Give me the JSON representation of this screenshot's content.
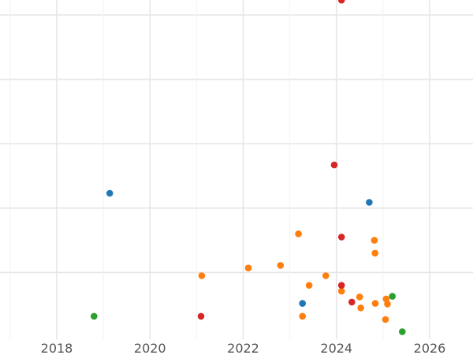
{
  "chart_data": {
    "type": "scatter",
    "title": "",
    "xlabel": "",
    "ylabel": "",
    "grid": true,
    "x_axis": {
      "type": "date",
      "range": [
        "2016-10-01",
        "2026-12-31"
      ],
      "ticks": [
        "2018",
        "2020",
        "2022",
        "2024",
        "2026"
      ],
      "minor_ticks": [
        "2017",
        "2019",
        "2021",
        "2023",
        "2025"
      ]
    },
    "y_axis": {
      "range": [
        0,
        540
      ],
      "gridlines": [
        100,
        200,
        300,
        400,
        500
      ],
      "tick_labels_visible": false
    },
    "series": [
      {
        "color": "#1f77b4",
        "points": [
          {
            "x": "2019-02-20",
            "y": 223
          },
          {
            "x": "2024-09-15",
            "y": 209
          },
          {
            "x": "2023-04-10",
            "y": 52
          }
        ]
      },
      {
        "color": "#ff7f0e",
        "points": [
          {
            "x": "2021-02-10",
            "y": 95
          },
          {
            "x": "2022-02-10",
            "y": 107
          },
          {
            "x": "2022-10-20",
            "y": 111
          },
          {
            "x": "2023-03-10",
            "y": 160
          },
          {
            "x": "2023-06-01",
            "y": 80
          },
          {
            "x": "2023-10-10",
            "y": 95
          },
          {
            "x": "2023-04-10",
            "y": 32
          },
          {
            "x": "2024-02-10",
            "y": 71
          },
          {
            "x": "2024-07-01",
            "y": 62
          },
          {
            "x": "2024-07-10",
            "y": 45
          },
          {
            "x": "2024-10-25",
            "y": 150
          },
          {
            "x": "2024-10-30",
            "y": 130
          },
          {
            "x": "2024-11-01",
            "y": 52
          },
          {
            "x": "2025-01-20",
            "y": 27
          },
          {
            "x": "2025-01-25",
            "y": 59
          },
          {
            "x": "2025-02-05",
            "y": 51
          }
        ]
      },
      {
        "color": "#2ca02c",
        "points": [
          {
            "x": "2018-10-20",
            "y": 32
          },
          {
            "x": "2025-03-15",
            "y": 63
          },
          {
            "x": "2025-06-01",
            "y": 8
          }
        ]
      },
      {
        "color": "#d62728",
        "points": [
          {
            "x": "2024-02-10",
            "y": 523
          },
          {
            "x": "2023-12-15",
            "y": 267
          },
          {
            "x": "2024-02-10",
            "y": 155
          },
          {
            "x": "2024-02-10",
            "y": 80
          },
          {
            "x": "2024-05-01",
            "y": 54
          },
          {
            "x": "2021-02-05",
            "y": 32
          }
        ]
      }
    ]
  }
}
